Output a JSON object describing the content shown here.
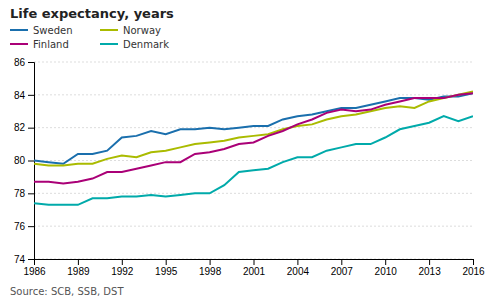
{
  "chart_data": {
    "type": "line",
    "title": "Life expectancy, years",
    "annotations": [
      "Source: SCB, SSB, DST"
    ],
    "x": [
      1986,
      1987,
      1988,
      1989,
      1990,
      1991,
      1992,
      1993,
      1994,
      1995,
      1996,
      1997,
      1998,
      1999,
      2000,
      2001,
      2002,
      2003,
      2004,
      2005,
      2006,
      2007,
      2008,
      2009,
      2010,
      2011,
      2012,
      2013,
      2014,
      2015,
      2016
    ],
    "series": [
      {
        "name": "Sweden",
        "color": "#1a6fad",
        "values": [
          80.0,
          79.9,
          79.8,
          80.4,
          80.4,
          80.6,
          81.4,
          81.5,
          81.8,
          81.6,
          81.9,
          81.9,
          82.0,
          81.9,
          82.0,
          82.1,
          82.1,
          82.5,
          82.7,
          82.8,
          83.0,
          83.2,
          83.2,
          83.4,
          83.6,
          83.8,
          83.8,
          83.7,
          83.9,
          83.9,
          84.1
        ]
      },
      {
        "name": "Norway",
        "color": "#aabb00",
        "values": [
          79.8,
          79.7,
          79.7,
          79.8,
          79.8,
          80.1,
          80.3,
          80.2,
          80.5,
          80.6,
          80.8,
          81.0,
          81.1,
          81.2,
          81.4,
          81.5,
          81.6,
          81.9,
          82.1,
          82.2,
          82.5,
          82.7,
          82.8,
          83.0,
          83.2,
          83.3,
          83.2,
          83.6,
          83.8,
          84.0,
          84.2
        ]
      },
      {
        "name": "Finland",
        "color": "#aa0077",
        "values": [
          78.7,
          78.7,
          78.6,
          78.7,
          78.9,
          79.3,
          79.3,
          79.5,
          79.7,
          79.9,
          79.9,
          80.4,
          80.5,
          80.7,
          81.0,
          81.1,
          81.5,
          81.8,
          82.2,
          82.5,
          82.9,
          83.1,
          83.0,
          83.1,
          83.4,
          83.6,
          83.8,
          83.8,
          83.8,
          84.0,
          84.1
        ]
      },
      {
        "name": "Denmark",
        "color": "#00aaaa",
        "values": [
          77.4,
          77.3,
          77.3,
          77.3,
          77.7,
          77.7,
          77.8,
          77.8,
          77.9,
          77.8,
          77.9,
          78.0,
          78.0,
          78.5,
          79.3,
          79.4,
          79.5,
          79.9,
          80.2,
          80.2,
          80.6,
          80.8,
          81.0,
          81.0,
          81.4,
          81.9,
          82.1,
          82.3,
          82.7,
          82.4,
          82.7
        ]
      }
    ],
    "xlim": [
      1986,
      2016
    ],
    "xticks": [
      1986,
      1989,
      1992,
      1995,
      1998,
      2001,
      2004,
      2007,
      2010,
      2013,
      2016
    ],
    "ylim": [
      74,
      86
    ],
    "yticks": [
      74,
      76,
      78,
      80,
      82,
      84,
      86
    ],
    "grid": true,
    "legend": "top"
  }
}
